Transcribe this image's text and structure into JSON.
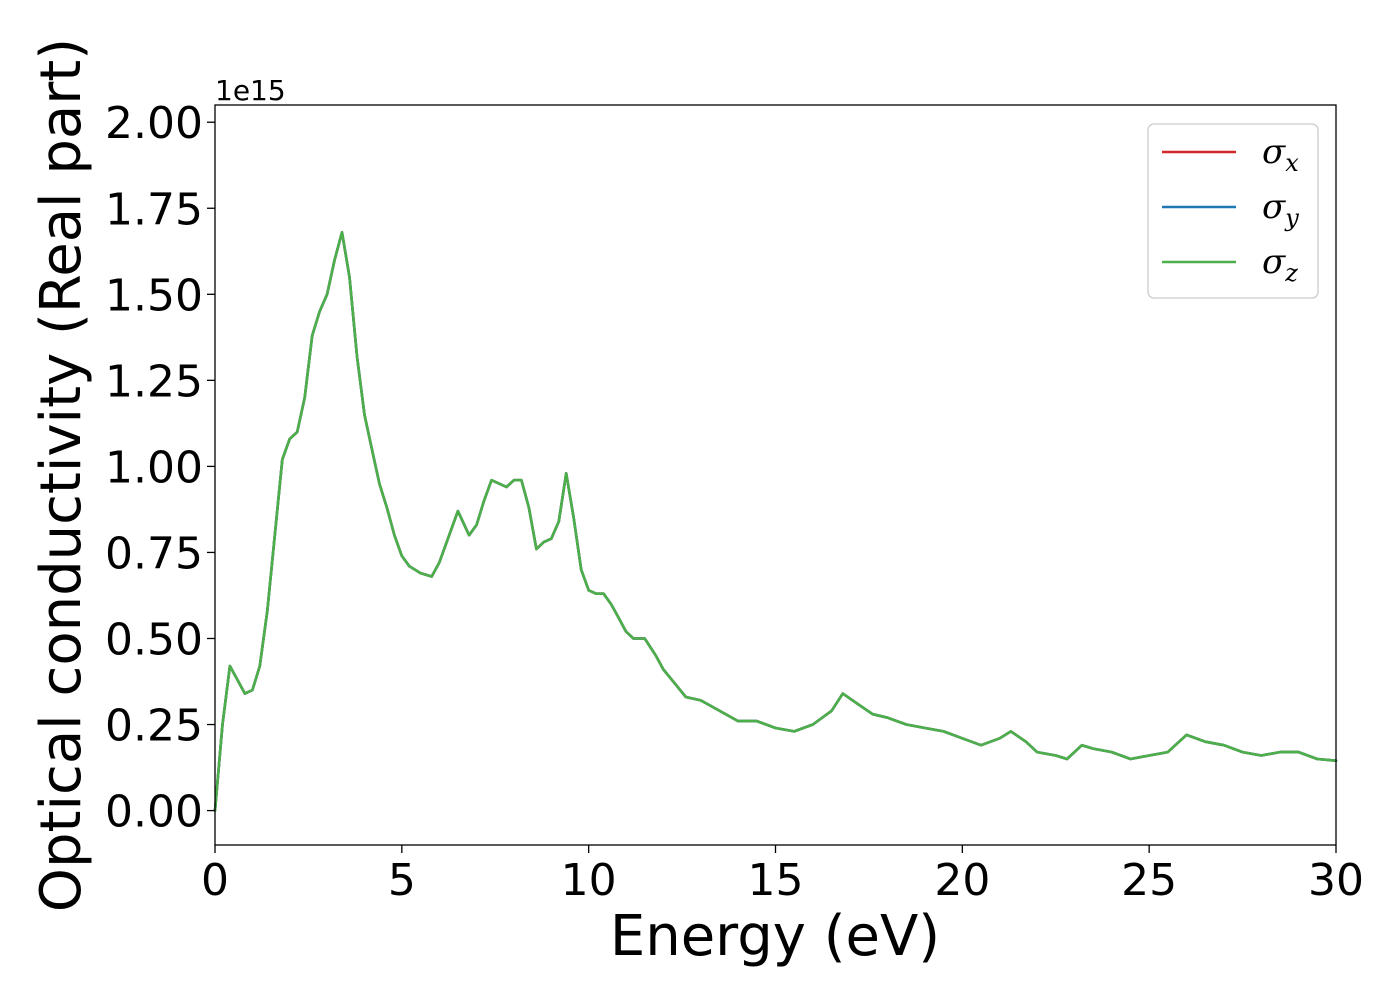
{
  "chart_data": {
    "type": "line",
    "xlabel": "Energy (eV)",
    "ylabel": "Optical conductivity (Real part)",
    "y_offset_text": "1e15",
    "xlim": [
      0,
      30
    ],
    "ylim": [
      -0.1,
      2.05
    ],
    "y_unit_scale": "1e15",
    "x_ticks": [
      0,
      5,
      10,
      15,
      20,
      25,
      30
    ],
    "x_tick_labels": [
      "0",
      "5",
      "10",
      "15",
      "20",
      "25",
      "30"
    ],
    "y_ticks": [
      0.0,
      0.25,
      0.5,
      0.75,
      1.0,
      1.25,
      1.5,
      1.75,
      2.0
    ],
    "y_tick_labels": [
      "0.00",
      "0.25",
      "0.50",
      "0.75",
      "1.00",
      "1.25",
      "1.50",
      "1.75",
      "2.00"
    ],
    "grid": false,
    "legend_position": "top-right",
    "colors": {
      "sigma_x": "#d62728",
      "sigma_y": "#1f77b4",
      "sigma_z": "#4daf4a"
    },
    "legend": [
      {
        "base": "σ",
        "sub": "x",
        "color": "#d62728"
      },
      {
        "base": "σ",
        "sub": "y",
        "color": "#1f77b4"
      },
      {
        "base": "σ",
        "sub": "z",
        "color": "#4daf4a"
      }
    ],
    "x": [
      0,
      0.2,
      0.4,
      0.6,
      0.8,
      1.0,
      1.2,
      1.4,
      1.6,
      1.8,
      2.0,
      2.2,
      2.4,
      2.6,
      2.8,
      3.0,
      3.2,
      3.4,
      3.6,
      3.8,
      4.0,
      4.2,
      4.4,
      4.6,
      4.8,
      5.0,
      5.2,
      5.5,
      5.8,
      6.0,
      6.2,
      6.5,
      6.8,
      7.0,
      7.2,
      7.4,
      7.6,
      7.8,
      8.0,
      8.2,
      8.4,
      8.6,
      8.8,
      9.0,
      9.2,
      9.4,
      9.6,
      9.8,
      10.0,
      10.2,
      10.4,
      10.6,
      10.8,
      11.0,
      11.2,
      11.5,
      11.8,
      12.0,
      12.3,
      12.6,
      13.0,
      13.5,
      14.0,
      14.5,
      15.0,
      15.5,
      16.0,
      16.5,
      16.8,
      17.2,
      17.6,
      18.0,
      18.5,
      19.0,
      19.5,
      20.0,
      20.5,
      21.0,
      21.3,
      21.7,
      22.0,
      22.5,
      22.8,
      23.2,
      23.5,
      24.0,
      24.5,
      25.0,
      25.5,
      26.0,
      26.5,
      27.0,
      27.5,
      28.0,
      28.5,
      29.0,
      29.5,
      30.0
    ],
    "series": [
      {
        "name": "σx",
        "values": [
          0.0,
          0.25,
          0.42,
          0.38,
          0.34,
          0.35,
          0.42,
          0.58,
          0.8,
          1.02,
          1.08,
          1.1,
          1.2,
          1.38,
          1.45,
          1.5,
          1.6,
          1.68,
          1.55,
          1.32,
          1.15,
          1.05,
          0.95,
          0.88,
          0.8,
          0.74,
          0.71,
          0.69,
          0.68,
          0.72,
          0.78,
          0.87,
          0.8,
          0.83,
          0.9,
          0.96,
          0.95,
          0.94,
          0.96,
          0.96,
          0.88,
          0.76,
          0.78,
          0.79,
          0.84,
          0.98,
          0.85,
          0.7,
          0.64,
          0.63,
          0.63,
          0.6,
          0.56,
          0.52,
          0.5,
          0.5,
          0.45,
          0.41,
          0.37,
          0.33,
          0.32,
          0.29,
          0.26,
          0.26,
          0.24,
          0.23,
          0.25,
          0.29,
          0.34,
          0.31,
          0.28,
          0.27,
          0.25,
          0.24,
          0.23,
          0.21,
          0.19,
          0.21,
          0.23,
          0.2,
          0.17,
          0.16,
          0.15,
          0.19,
          0.18,
          0.17,
          0.15,
          0.16,
          0.17,
          0.22,
          0.2,
          0.19,
          0.17,
          0.16,
          0.17,
          0.17,
          0.15,
          0.145
        ]
      },
      {
        "name": "σy",
        "values": [
          0.0,
          0.25,
          0.42,
          0.38,
          0.34,
          0.35,
          0.42,
          0.58,
          0.8,
          1.02,
          1.08,
          1.1,
          1.2,
          1.38,
          1.45,
          1.5,
          1.6,
          1.68,
          1.55,
          1.32,
          1.15,
          1.05,
          0.95,
          0.88,
          0.8,
          0.74,
          0.71,
          0.69,
          0.68,
          0.72,
          0.78,
          0.87,
          0.8,
          0.83,
          0.9,
          0.96,
          0.95,
          0.94,
          0.96,
          0.96,
          0.88,
          0.76,
          0.78,
          0.79,
          0.84,
          0.98,
          0.85,
          0.7,
          0.64,
          0.63,
          0.63,
          0.6,
          0.56,
          0.52,
          0.5,
          0.5,
          0.45,
          0.41,
          0.37,
          0.33,
          0.32,
          0.29,
          0.26,
          0.26,
          0.24,
          0.23,
          0.25,
          0.29,
          0.34,
          0.31,
          0.28,
          0.27,
          0.25,
          0.24,
          0.23,
          0.21,
          0.19,
          0.21,
          0.23,
          0.2,
          0.17,
          0.16,
          0.15,
          0.19,
          0.18,
          0.17,
          0.15,
          0.16,
          0.17,
          0.22,
          0.2,
          0.19,
          0.17,
          0.16,
          0.17,
          0.17,
          0.15,
          0.145
        ]
      },
      {
        "name": "σz",
        "values": [
          0.0,
          0.25,
          0.42,
          0.38,
          0.34,
          0.35,
          0.42,
          0.58,
          0.8,
          1.02,
          1.08,
          1.1,
          1.2,
          1.38,
          1.45,
          1.5,
          1.6,
          1.68,
          1.55,
          1.32,
          1.15,
          1.05,
          0.95,
          0.88,
          0.8,
          0.74,
          0.71,
          0.69,
          0.68,
          0.72,
          0.78,
          0.87,
          0.8,
          0.83,
          0.9,
          0.96,
          0.95,
          0.94,
          0.96,
          0.96,
          0.88,
          0.76,
          0.78,
          0.79,
          0.84,
          0.98,
          0.85,
          0.7,
          0.64,
          0.63,
          0.63,
          0.6,
          0.56,
          0.52,
          0.5,
          0.5,
          0.45,
          0.41,
          0.37,
          0.33,
          0.32,
          0.29,
          0.26,
          0.26,
          0.24,
          0.23,
          0.25,
          0.29,
          0.34,
          0.31,
          0.28,
          0.27,
          0.25,
          0.24,
          0.23,
          0.21,
          0.19,
          0.21,
          0.23,
          0.2,
          0.17,
          0.16,
          0.15,
          0.19,
          0.18,
          0.17,
          0.15,
          0.16,
          0.17,
          0.22,
          0.2,
          0.19,
          0.17,
          0.16,
          0.17,
          0.17,
          0.15,
          0.145
        ]
      }
    ]
  }
}
